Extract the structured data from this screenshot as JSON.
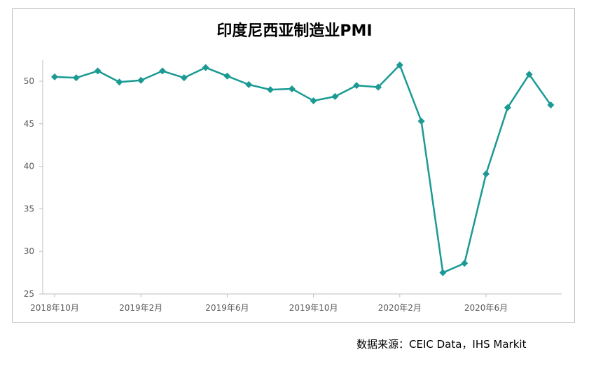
{
  "chart_data": {
    "type": "line",
    "title": "印度尼西亚制造业PMI",
    "xlabel": "",
    "ylabel": "",
    "ylim": [
      25,
      52.5
    ],
    "yticks": [
      25,
      30,
      35,
      40,
      45,
      50
    ],
    "x": [
      "2018年10月",
      "2018年11月",
      "2018年12月",
      "2019年1月",
      "2019年2月",
      "2019年3月",
      "2019年4月",
      "2019年5月",
      "2019年6月",
      "2019年7月",
      "2019年8月",
      "2019年9月",
      "2019年10月",
      "2019年11月",
      "2019年12月",
      "2020年1月",
      "2020年2月",
      "2020年3月",
      "2020年4月",
      "2020年5月",
      "2020年6月",
      "2020年7月",
      "2020年8月",
      "2020年9月"
    ],
    "x_tick_labels": [
      "2018年10月",
      "2019年2月",
      "2019年6月",
      "2019年10月",
      "2020年2月",
      "2020年6月"
    ],
    "series": [
      {
        "values": [
          50.5,
          50.4,
          51.2,
          49.9,
          50.1,
          51.2,
          50.4,
          51.6,
          50.6,
          49.6,
          49.0,
          49.1,
          47.7,
          48.2,
          49.5,
          49.3,
          51.9,
          45.3,
          27.5,
          28.6,
          39.1,
          46.9,
          50.8,
          47.2
        ],
        "color": "#1a9a93"
      }
    ],
    "grid": false,
    "legend": "none"
  },
  "source": "数据来源：CEIC Data，IHS Markit"
}
